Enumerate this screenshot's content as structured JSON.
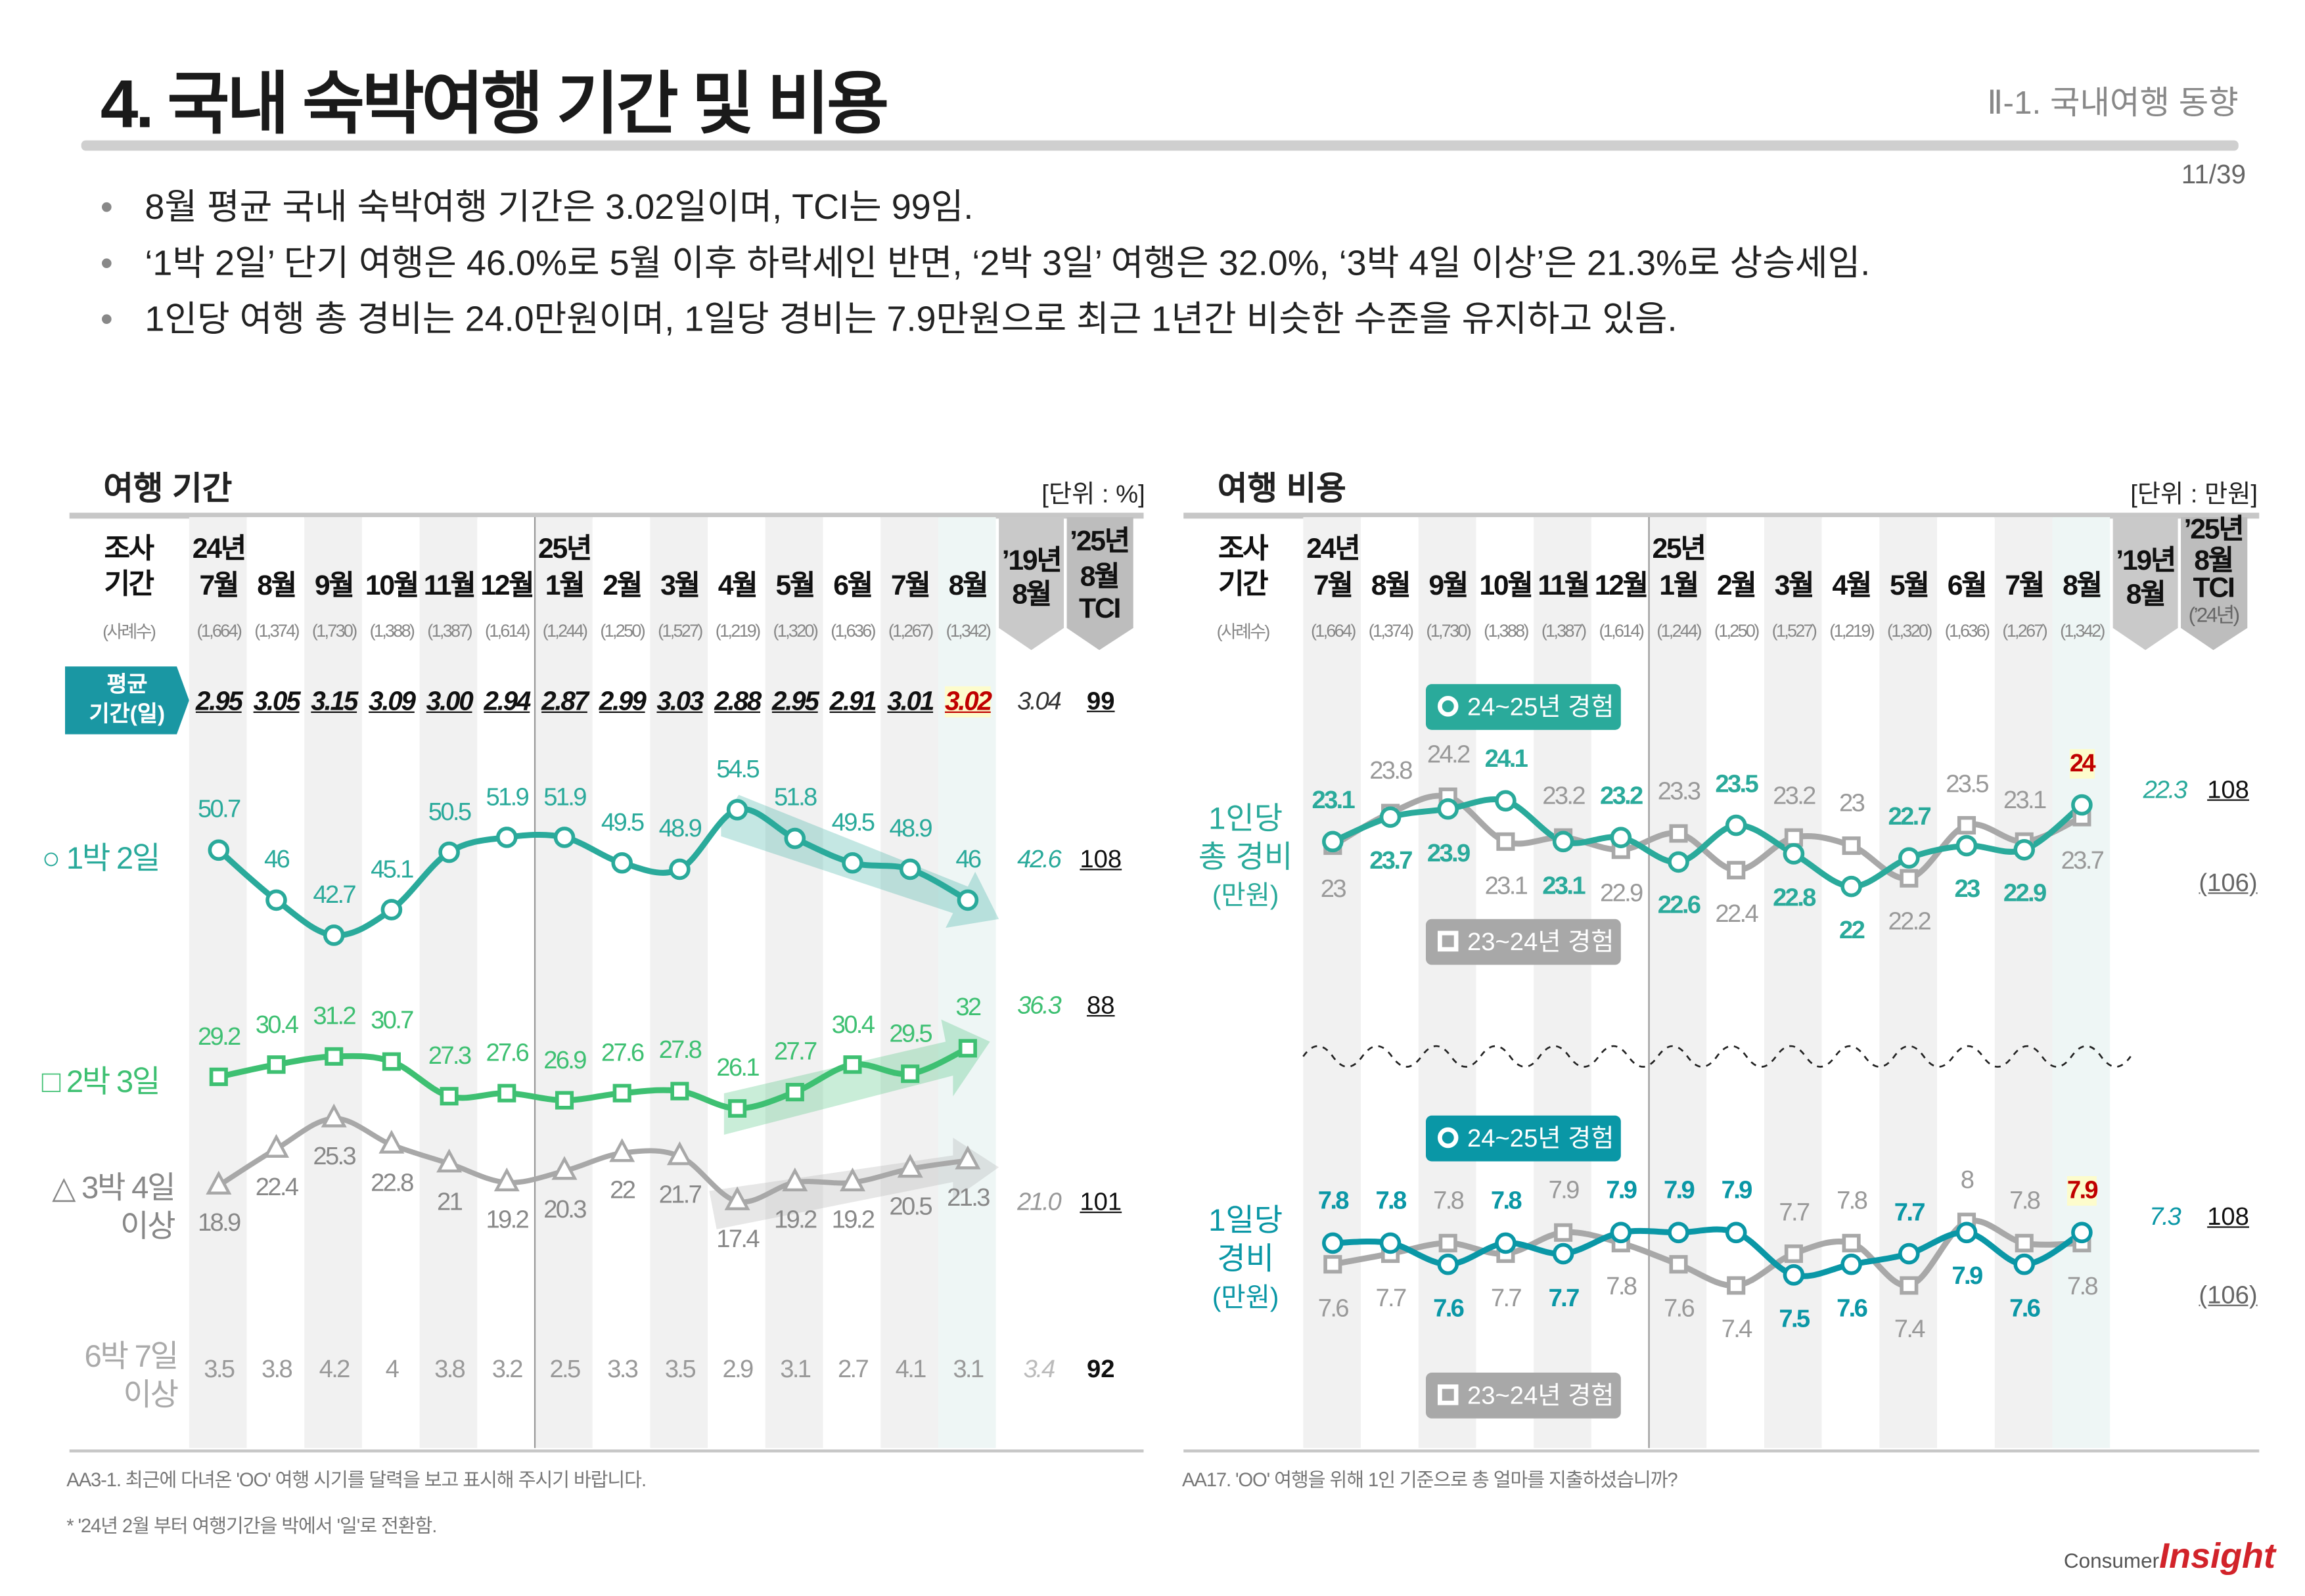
{
  "header": {
    "title": "4. 국내 숙박여행 기간 및 비용",
    "section": "Ⅱ-1. 국내여행 동향",
    "page": "11/39"
  },
  "bullets": [
    "8월 평균 국내 숙박여행 기간은 3.02일이며, TCI는 99임.",
    "‘1박 2일’ 단기 여행은 46.0%로 5월 이후 하락세인 반면, ‘2박 3일’ 여행은 32.0%, ‘3박 4일 이상’은 21.3%로 상승세임.",
    "1인당 여행 총 경비는 24.0만원이며, 1일당 경비는 7.9만원으로 최근 1년간 비슷한 수준을 유지하고 있음."
  ],
  "columns": {
    "survey_label": [
      "조사",
      "기간"
    ],
    "year1": "24년",
    "year2": "25년",
    "months": [
      "7월",
      "8월",
      "9월",
      "10월",
      "11월",
      "12월",
      "1월",
      "2월",
      "3월",
      "4월",
      "5월",
      "6월",
      "7월",
      "8월"
    ],
    "samples_label": "(사례수)",
    "samples": [
      "(1,664)",
      "(1,374)",
      "(1,730)",
      "(1,388)",
      "(1,387)",
      "(1,614)",
      "(1,244)",
      "(1,250)",
      "(1,527)",
      "(1,219)",
      "(1,320)",
      "(1,636)",
      "(1,267)",
      "(1,342)"
    ],
    "col_2019": [
      "’19년",
      "8월"
    ],
    "col_tci": [
      "’25년",
      "8월",
      "TCI"
    ],
    "col_tci_note": "(’24년)"
  },
  "left": {
    "title": "여행 기간",
    "unit": "[단위 : %]",
    "avg_label": [
      "평균",
      "기간(일)"
    ],
    "avg_values": [
      "2.95",
      "3.05",
      "3.15",
      "3.09",
      "3.00",
      "2.94",
      "2.87",
      "2.99",
      "3.03",
      "2.88",
      "2.95",
      "2.91",
      "3.01",
      "3.02"
    ],
    "avg_2019": "3.04",
    "avg_tci": "99",
    "footnotes": [
      "AA3-1. 최근에 다녀온 'OO' 여행 시기를 달력을 보고 표시해 주시기 바랍니다.",
      "* '24년 2월 부터 여행기간을 박에서 '일'로 전환함."
    ]
  },
  "right": {
    "title": "여행 비용",
    "unit": "[단위 : 만원]",
    "legend_current": "24~25년 경험",
    "legend_prev": "23~24년 경험",
    "total_label": [
      "1인당",
      "총 경비",
      "(만원)"
    ],
    "daily_label": [
      "1일당",
      "경비",
      "(만원)"
    ],
    "footnote": "AA17. 'OO' 여행을 위해 1인 기준으로 총 얼마를 지출하셨습니까?"
  },
  "logo": {
    "text1": "Consumer",
    "text2": "Insight"
  },
  "colors": {
    "teal": "#2aaa9b",
    "green": "#3ec072",
    "gray": "#a8a8a8",
    "dark_teal": "#0a97a6",
    "highlight_red": "#c00000",
    "highlight_bg": "#fdfccc"
  },
  "chart_data": [
    {
      "type": "line",
      "title": "여행 기간",
      "unit": "%",
      "categories": [
        "24년 7월",
        "8월",
        "9월",
        "10월",
        "11월",
        "12월",
        "25년 1월",
        "2월",
        "3월",
        "4월",
        "5월",
        "6월",
        "7월",
        "8월"
      ],
      "series": [
        {
          "name": "○ 1박 2일",
          "marker": "circle",
          "values": [
            50.7,
            46.0,
            42.7,
            45.1,
            50.5,
            51.9,
            51.9,
            49.5,
            48.9,
            54.5,
            51.8,
            49.5,
            48.9,
            46.0
          ],
          "ref_2019": "42.6",
          "tci": "108",
          "trend": "down"
        },
        {
          "name": "□ 2박 3일",
          "marker": "square",
          "values": [
            29.2,
            30.4,
            31.2,
            30.7,
            27.3,
            27.6,
            26.9,
            27.6,
            27.8,
            26.1,
            27.7,
            30.4,
            29.5,
            32.0
          ],
          "ref_2019": "36.3",
          "tci": "88",
          "trend": "up"
        },
        {
          "name": "△ 3박 4일 이상",
          "marker": "triangle",
          "values": [
            18.9,
            22.4,
            25.3,
            22.8,
            21.0,
            19.2,
            20.3,
            22.0,
            21.7,
            17.4,
            19.2,
            19.2,
            20.5,
            21.3
          ],
          "ref_2019": "21.0",
          "tci": "101",
          "trend": "up"
        },
        {
          "name": "6박 7일 이상",
          "marker": "none",
          "values": [
            3.5,
            3.8,
            4.2,
            4.0,
            3.8,
            3.2,
            2.5,
            3.3,
            3.5,
            2.9,
            3.1,
            2.7,
            4.1,
            3.1
          ],
          "ref_2019": "3.4",
          "tci": "92"
        }
      ]
    },
    {
      "type": "line",
      "title": "여행 비용 - 1인당 총 경비",
      "unit": "만원",
      "categories": [
        "24년 7월",
        "8월",
        "9월",
        "10월",
        "11월",
        "12월",
        "25년 1월",
        "2월",
        "3월",
        "4월",
        "5월",
        "6월",
        "7월",
        "8월"
      ],
      "series": [
        {
          "name": "24~25년 경험",
          "marker": "circle",
          "values": [
            23.1,
            23.7,
            23.9,
            24.1,
            23.1,
            23.2,
            22.6,
            23.5,
            22.8,
            22.0,
            22.7,
            23.0,
            22.9,
            24.0
          ],
          "ref_2019": "22.3",
          "tci": "108"
        },
        {
          "name": "23~24년 경험",
          "marker": "square",
          "values": [
            23.0,
            23.8,
            24.2,
            23.1,
            23.2,
            22.9,
            23.3,
            22.4,
            23.2,
            23.0,
            22.2,
            23.5,
            23.1,
            23.7
          ],
          "tci": "(106)"
        }
      ]
    },
    {
      "type": "line",
      "title": "여행 비용 - 1일당 경비",
      "unit": "만원",
      "categories": [
        "24년 7월",
        "8월",
        "9월",
        "10월",
        "11월",
        "12월",
        "25년 1월",
        "2월",
        "3월",
        "4월",
        "5월",
        "6월",
        "7월",
        "8월"
      ],
      "series": [
        {
          "name": "24~25년 경험",
          "marker": "circle",
          "values": [
            7.8,
            7.8,
            7.6,
            7.8,
            7.7,
            7.9,
            7.9,
            7.9,
            7.5,
            7.6,
            7.7,
            7.9,
            7.6,
            7.9
          ],
          "ref_2019": "7.3",
          "tci": "108"
        },
        {
          "name": "23~24년 경험",
          "marker": "square",
          "values": [
            7.6,
            7.7,
            7.8,
            7.7,
            7.9,
            7.8,
            7.6,
            7.4,
            7.7,
            7.8,
            7.4,
            8.0,
            7.8,
            7.8
          ],
          "tci": "(106)"
        }
      ]
    }
  ]
}
